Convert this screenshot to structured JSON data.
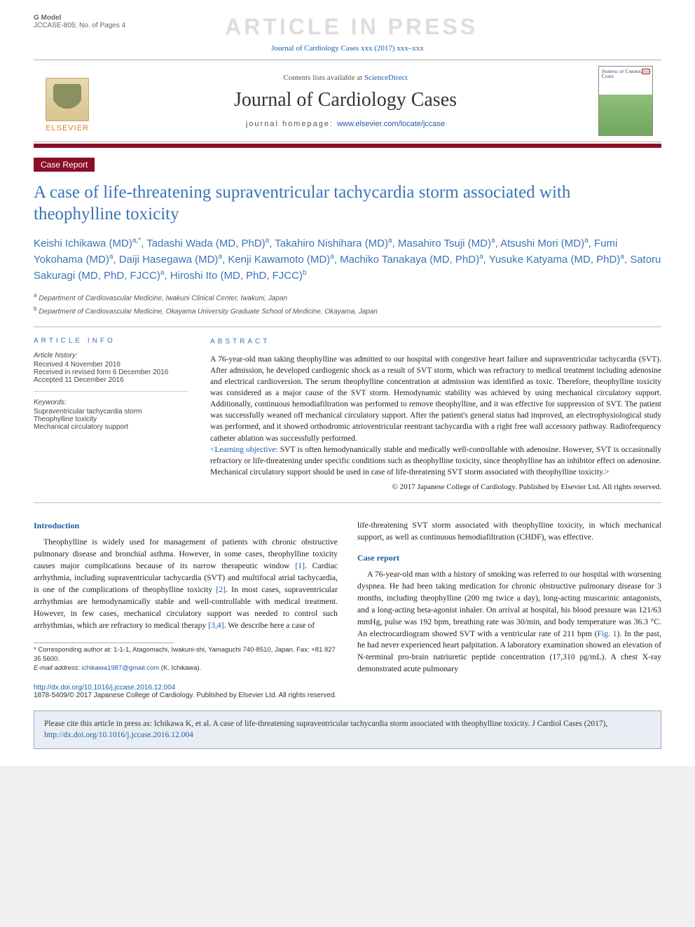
{
  "gmodel": {
    "label": "G Model",
    "code": "JCCASE-805; No. of Pages 4"
  },
  "press_banner": "ARTICLE IN PRESS",
  "top_cite": "Journal of Cardiology Cases xxx (2017) xxx–xxx",
  "masthead": {
    "contents_pre": "Contents lists available at ",
    "contents_link": "ScienceDirect",
    "journal": "Journal of Cardiology Cases",
    "homepage_pre": "journal homepage: ",
    "homepage_link": "www.elsevier.com/locate/jccase",
    "elsevier": "ELSEVIER",
    "cover_title": "Journal of Cardiology Cases"
  },
  "case_tag": "Case Report",
  "title": "A case of life-threatening supraventricular tachycardia storm associated with theophylline toxicity",
  "authors_html": "Keishi Ichikawa (MD)<sup>a,*</sup>, Tadashi Wada (MD, PhD)<sup>a</sup>, Takahiro Nishihara (MD)<sup>a</sup>, Masahiro Tsuji (MD)<sup>a</sup>, Atsushi Mori (MD)<sup>a</sup>, Fumi Yokohama (MD)<sup>a</sup>, Daiji Hasegawa (MD)<sup>a</sup>, Kenji Kawamoto (MD)<sup>a</sup>, Machiko Tanakaya (MD, PhD)<sup>a</sup>, Yusuke Katyama (MD, PhD)<sup>a</sup>, Satoru Sakuragi (MD, PhD, FJCC)<sup>a</sup>, Hiroshi Ito (MD, PhD, FJCC)<sup>b</sup>",
  "affils": {
    "a": "Department of Cardiovascular Medicine, Iwakuni Clinical Center, Iwakuni, Japan",
    "b": "Department of Cardiovascular Medicine, Okayama University Graduate School of Medicine, Okayama, Japan"
  },
  "article_info": {
    "head": "ARTICLE INFO",
    "history_label": "Article history:",
    "received": "Received 4 November 2016",
    "revised": "Received in revised form 6 December 2016",
    "accepted": "Accepted 11 December 2016",
    "keywords_label": "Keywords:",
    "kw1": "Supraventricular tachycardia storm",
    "kw2": "Theophylline toxicity",
    "kw3": "Mechanical circulatory support"
  },
  "abstract": {
    "head": "ABSTRACT",
    "p1": "A 76-year-old man taking theophylline was admitted to our hospital with congestive heart failure and supraventricular tachycardia (SVT). After admission, he developed cardiogenic shock as a result of SVT storm, which was refractory to medical treatment including adenosine and electrical cardioversion. The serum theophylline concentration at admission was identified as toxic. Therefore, theophylline toxicity was considered as a major cause of the SVT storm. Hemodynamic stability was achieved by using mechanical circulatory support. Additionally, continuous hemodiafiltration was performed to remove theophylline, and it was effective for suppression of SVT. The patient was successfully weaned off mechanical circulatory support. After the patient's general status had improved, an electrophysiological study was performed, and it showed orthodromic atrioventricular reentrant tachycardia with a right free wall accessory pathway. Radiofrequency catheter ablation was successfully performed.",
    "lo_label": "<Learning objective:",
    "lo_text": " SVT is often hemodynamically stable and medically well-controllable with adenosine. However, SVT is occasionally refractory or life-threatening under specific conditions such as theophylline toxicity, since theophylline has an inhibitor effect on adenosine. Mechanical circulatory support should be used in case of life-threatening SVT storm associated with theophylline toxicity.>",
    "copyright": "© 2017 Japanese College of Cardiology. Published by Elsevier Ltd. All rights reserved."
  },
  "intro": {
    "head": "Introduction",
    "text": "Theophylline is widely used for management of patients with chronic obstructive pulmonary disease and bronchial asthma. However, in some cases, theophylline toxicity causes major complications because of its narrow therapeutic window [1]. Cardiac arrhythmia, including supraventricular tachycardia (SVT) and multifocal atrial tachycardia, is one of the complications of theophylline toxicity [2]. In most cases, supraventricular arrhythmias are hemodynamically stable and well-controllable with medical treatment. However, in few cases, mechanical circulatory support was needed to control such arrhythmias, which are refractory to medical therapy [3,4]. We describe here a case of"
  },
  "col2_top": "life-threatening SVT storm associated with theophylline toxicity, in which mechanical support, as well as continuous hemodiafiltration (CHDF), was effective.",
  "case": {
    "head": "Case report",
    "text": "A 76-year-old man with a history of smoking was referred to our hospital with worsening dyspnea. He had been taking medication for chronic obstructive pulmonary disease for 3 months, including theophylline (200 mg twice a day), long-acting muscarinic antagonists, and a long-acting beta-agonist inhaler. On arrival at hospital, his blood pressure was 121/63 mmHg, pulse was 192 bpm, breathing rate was 30/min, and body temperature was 36.3 °C. An electrocardiogram showed SVT with a ventricular rate of 211 bpm (Fig. 1). In the past, he had never experienced heart palpitation. A laboratory examination showed an elevation of N-terminal pro-brain natriuretic peptide concentration (17,310 pg/mL). A chest X-ray demonstrated acute pulmonary"
  },
  "footnotes": {
    "corr": "* Corresponding author at: 1-1-1, Atagomachi, Iwakuni-shi, Yamaguchi 740-8510, Japan. Fax: +81 827 35 5600.",
    "email_label": "E-mail address: ",
    "email": "ichikawa1987@gmail.com",
    "email_suffix": " (K. Ichikawa)."
  },
  "doi": {
    "link": "http://dx.doi.org/10.1016/j.jccase.2016.12.004",
    "line": "1878-5409/© 2017 Japanese College of Cardiology. Published by Elsevier Ltd. All rights reserved."
  },
  "cite_box": {
    "pre": "Please cite this article in press as: Ichikawa K, et al. A case of life-threatening supraventricular tachycardia storm associated with theophylline toxicity. J Cardiol Cases (2017), ",
    "link": "http://dx.doi.org/10.1016/j.jccase.2016.12.004"
  },
  "colors": {
    "brand_red": "#8a0f26",
    "link_blue": "#1a5da6",
    "title_blue": "#3a74b8"
  }
}
